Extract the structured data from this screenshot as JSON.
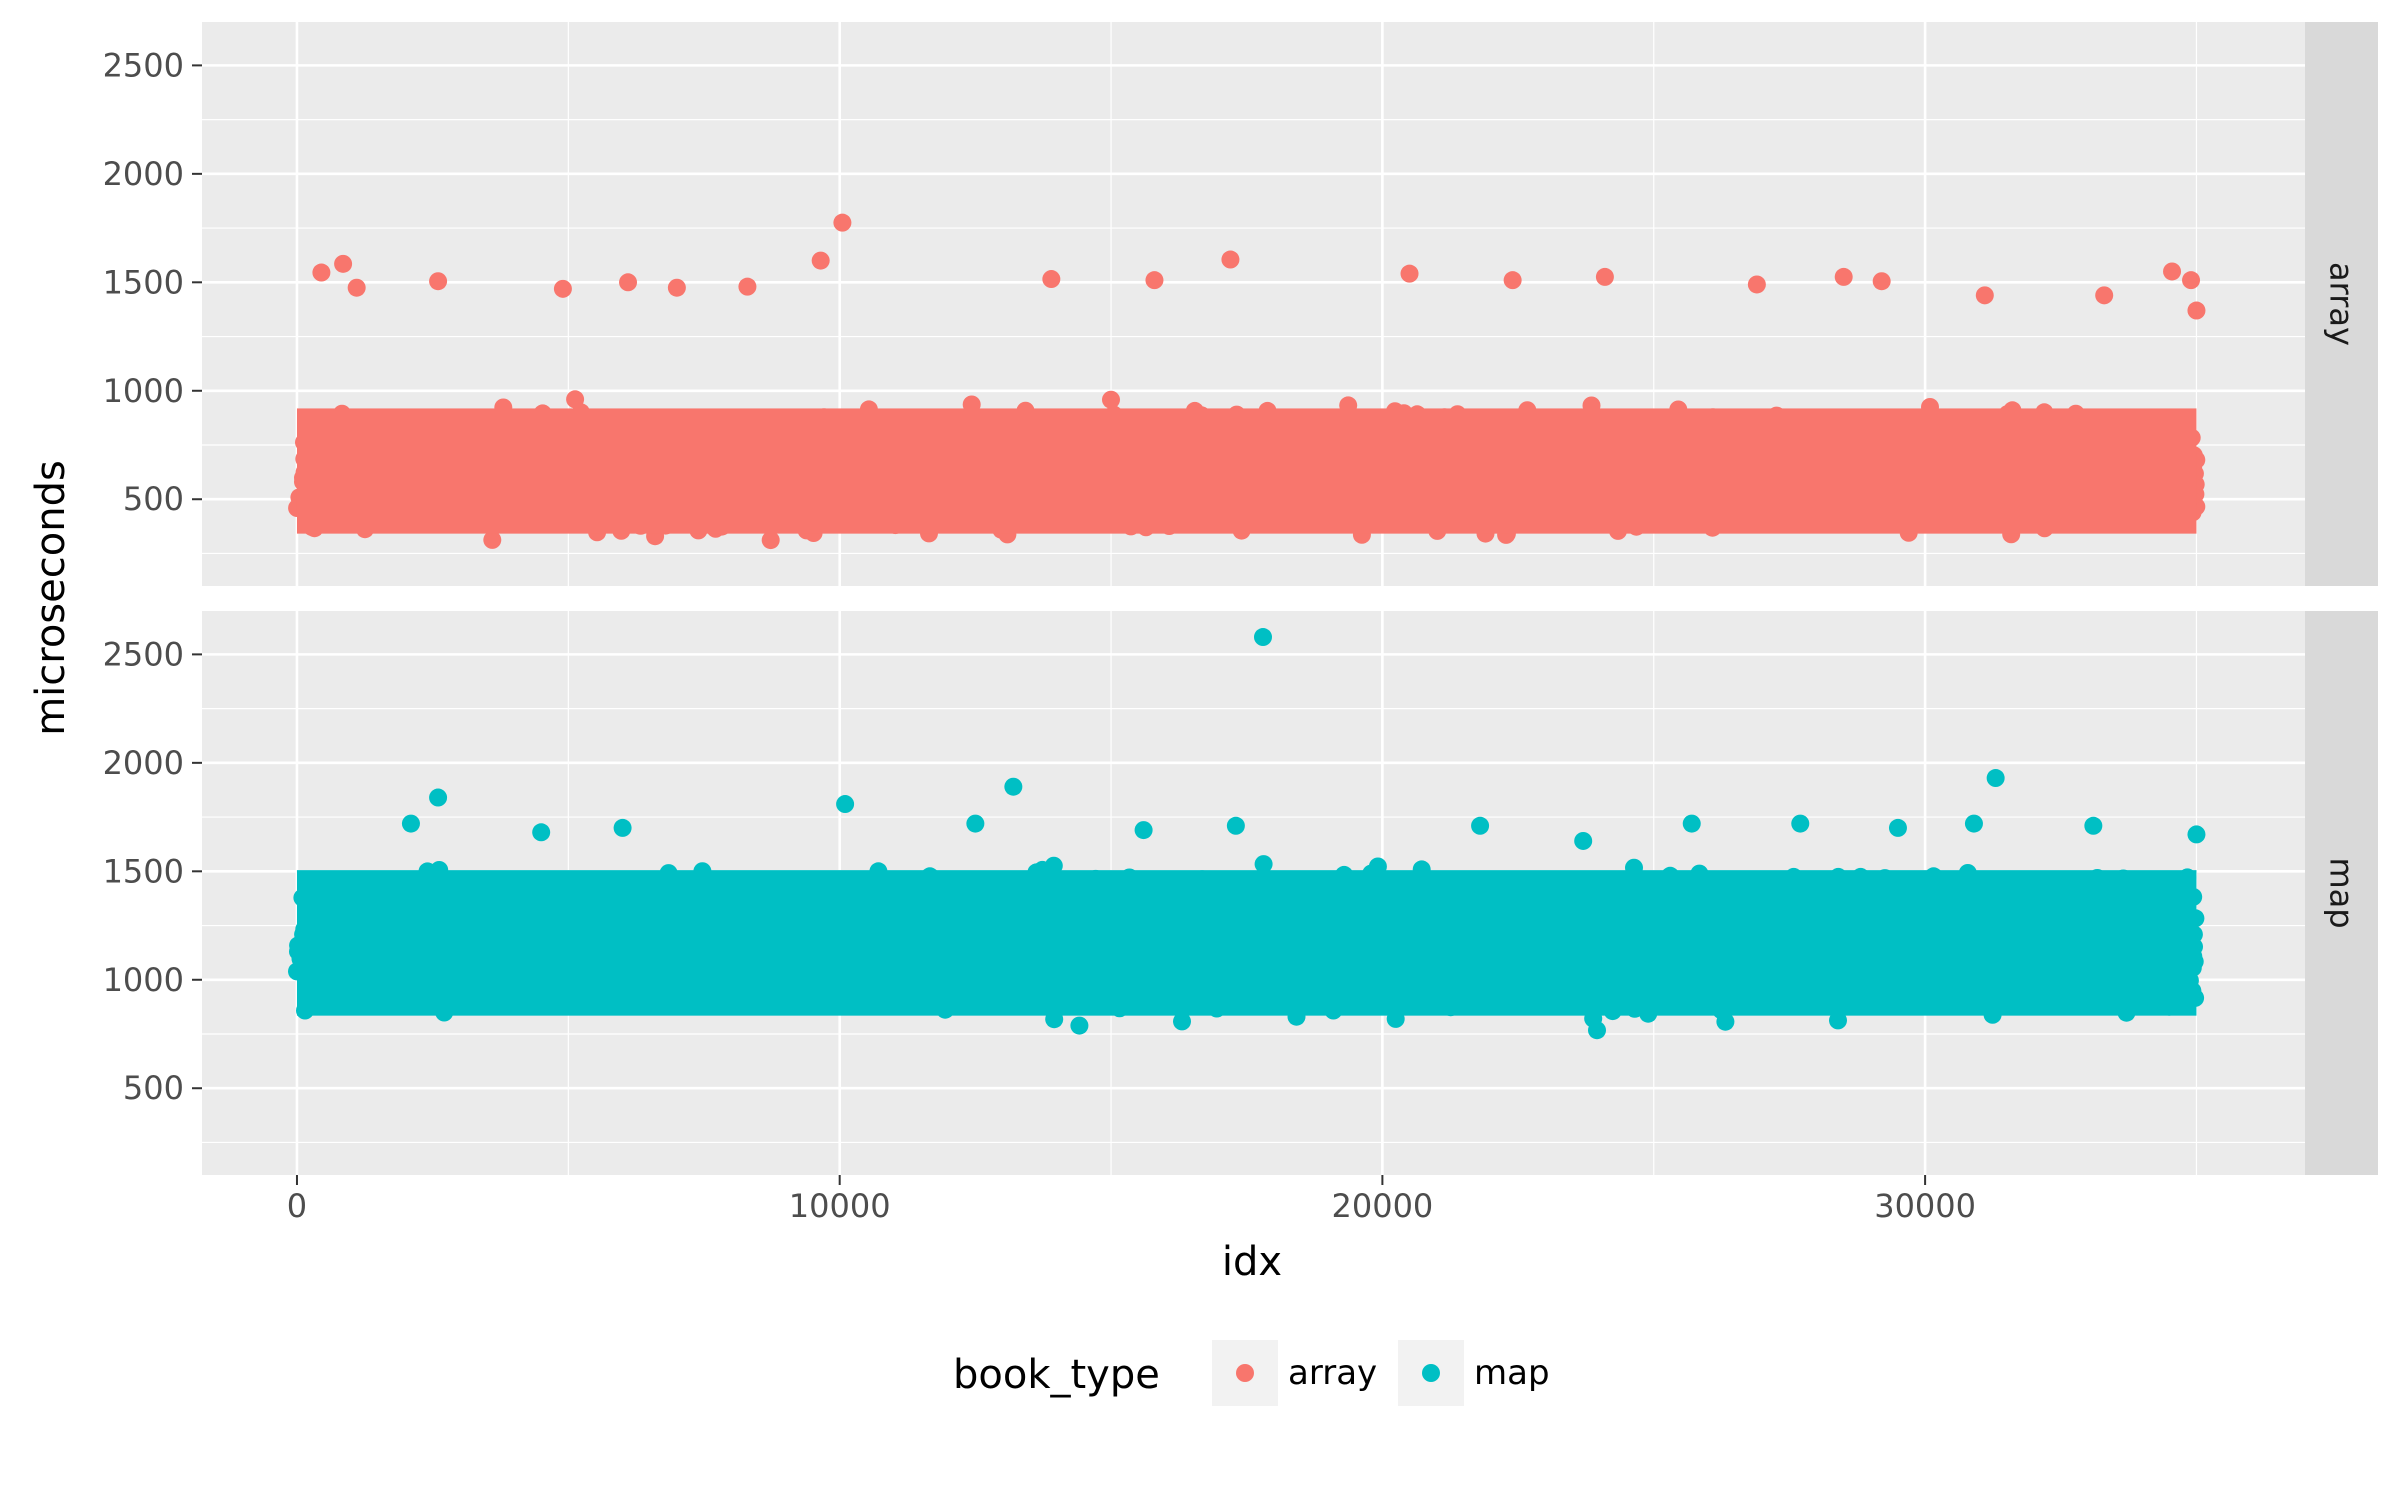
{
  "chart_data": {
    "type": "scatter",
    "xlabel": "idx",
    "ylabel": "microseconds",
    "xlim": [
      -1750,
      37000
    ],
    "ylim": [
      100,
      2700
    ],
    "x_ticks": [
      0,
      10000,
      20000,
      30000
    ],
    "y_ticks": [
      500,
      1000,
      1500,
      2000,
      2500
    ],
    "grid": true,
    "legend": {
      "title": "book_type",
      "position": "bottom"
    },
    "facets": [
      "array",
      "map"
    ],
    "series": [
      {
        "name": "array",
        "color": "#F8766D",
        "band": {
          "x_range": [
            0,
            35000
          ],
          "y_range": [
            260,
            1000
          ]
        },
        "outliers": [
          {
            "x": 10050,
            "y": 1775
          },
          {
            "x": 9650,
            "y": 1600
          },
          {
            "x": 17200,
            "y": 1605
          },
          {
            "x": 850,
            "y": 1585
          },
          {
            "x": 450,
            "y": 1545
          },
          {
            "x": 34550,
            "y": 1550
          },
          {
            "x": 20500,
            "y": 1540
          },
          {
            "x": 34900,
            "y": 1510
          },
          {
            "x": 2600,
            "y": 1505
          },
          {
            "x": 24100,
            "y": 1525
          },
          {
            "x": 28500,
            "y": 1525
          },
          {
            "x": 29200,
            "y": 1505
          },
          {
            "x": 22400,
            "y": 1510
          },
          {
            "x": 15800,
            "y": 1510
          },
          {
            "x": 6100,
            "y": 1500
          },
          {
            "x": 8300,
            "y": 1480
          },
          {
            "x": 13900,
            "y": 1515
          },
          {
            "x": 4900,
            "y": 1470
          },
          {
            "x": 7000,
            "y": 1475
          },
          {
            "x": 26900,
            "y": 1490
          },
          {
            "x": 31100,
            "y": 1440
          },
          {
            "x": 1100,
            "y": 1475
          },
          {
            "x": 33300,
            "y": 1440
          },
          {
            "x": 35000,
            "y": 1370
          }
        ]
      },
      {
        "name": "map",
        "color": "#00BFC4",
        "band": {
          "x_range": [
            0,
            35000
          ],
          "y_range": [
            740,
            1600
          ]
        },
        "outliers": [
          {
            "x": 17800,
            "y": 2580
          },
          {
            "x": 31300,
            "y": 1930
          },
          {
            "x": 13200,
            "y": 1890
          },
          {
            "x": 2600,
            "y": 1840
          },
          {
            "x": 10100,
            "y": 1810
          },
          {
            "x": 12500,
            "y": 1720
          },
          {
            "x": 2100,
            "y": 1720
          },
          {
            "x": 17300,
            "y": 1710
          },
          {
            "x": 21800,
            "y": 1710
          },
          {
            "x": 25700,
            "y": 1720
          },
          {
            "x": 27700,
            "y": 1720
          },
          {
            "x": 30900,
            "y": 1720
          },
          {
            "x": 33100,
            "y": 1710
          },
          {
            "x": 6000,
            "y": 1700
          },
          {
            "x": 15600,
            "y": 1690
          },
          {
            "x": 29500,
            "y": 1700
          },
          {
            "x": 35000,
            "y": 1670
          },
          {
            "x": 4500,
            "y": 1680
          },
          {
            "x": 23700,
            "y": 1640
          }
        ]
      }
    ]
  }
}
